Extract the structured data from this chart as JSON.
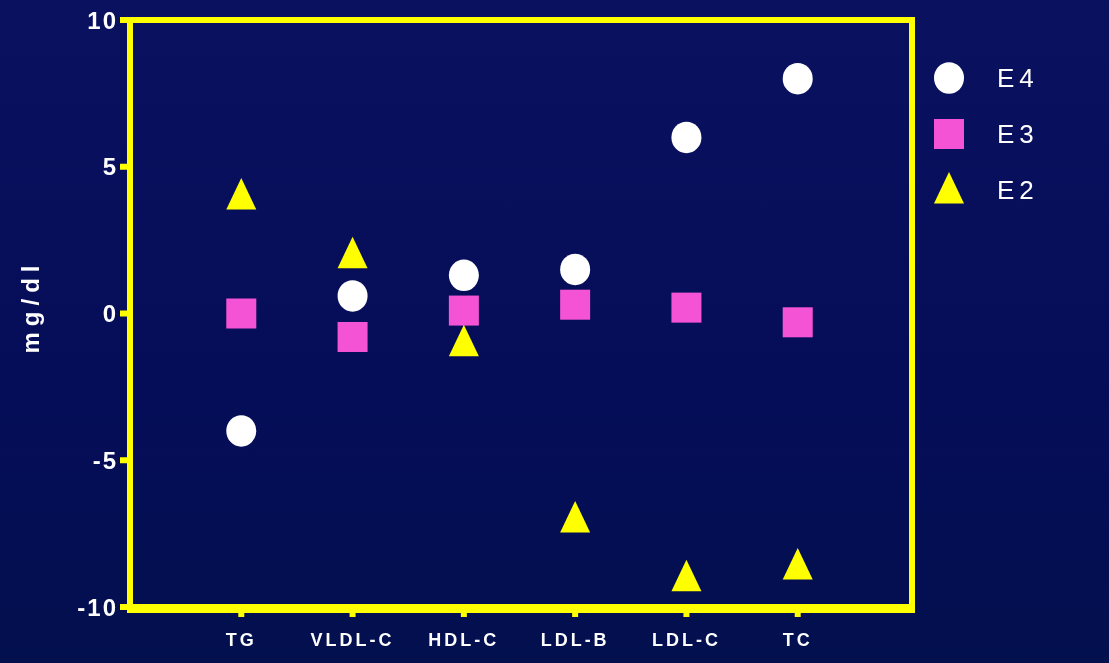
{
  "chart_data": {
    "type": "scatter",
    "ylabel": "mg/dl",
    "categories": [
      "TG",
      "VLDL-C",
      "HDL-C",
      "LDL-B",
      "LDL-C",
      "TC"
    ],
    "ylim": [
      -10,
      10
    ],
    "yticks": [
      -10,
      -5,
      0,
      5,
      10
    ],
    "grid": false,
    "legend": "top right",
    "series": [
      {
        "name": "E4",
        "color": "#ffffff",
        "marker": "circle",
        "values": [
          -4.0,
          0.6,
          1.3,
          1.5,
          6.0,
          8.0
        ]
      },
      {
        "name": "E3",
        "color": "#f553d6",
        "marker": "square",
        "values": [
          0,
          -0.8,
          0.1,
          0.3,
          0.2,
          -0.3
        ]
      },
      {
        "name": "E2",
        "color": "#ffff00",
        "marker": "triangle",
        "values": [
          4.0,
          2.0,
          -1.0,
          -7.0,
          -9.0,
          -8.6
        ]
      }
    ]
  }
}
